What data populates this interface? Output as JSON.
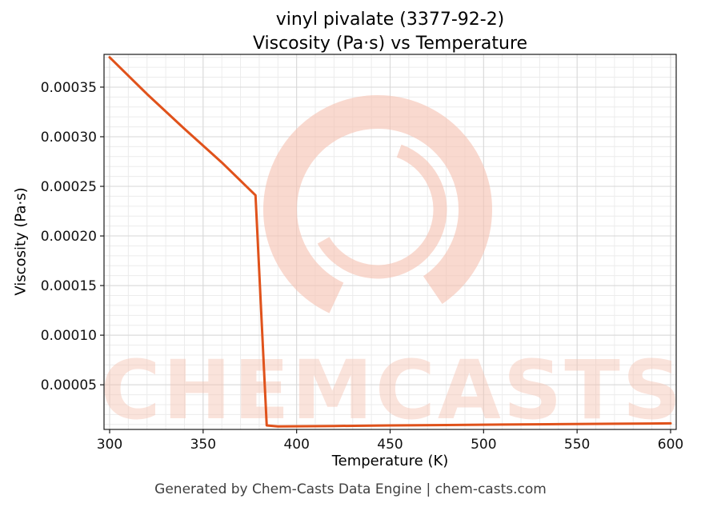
{
  "chart_data": {
    "type": "line",
    "title": "vinyl pivalate (3377-92-2)",
    "subtitle": "Viscosity (Pa·s) vs Temperature",
    "xlabel": "Temperature (K)",
    "ylabel": "Viscosity (Pa·s)",
    "xlim": [
      297,
      603
    ],
    "ylim": [
      5e-06,
      0.000383
    ],
    "x_ticks": [
      300,
      350,
      400,
      450,
      500,
      550,
      600
    ],
    "x_tick_labels": [
      "300",
      "350",
      "400",
      "450",
      "500",
      "550",
      "600"
    ],
    "y_ticks": [
      5e-05,
      0.0001,
      0.00015,
      0.0002,
      0.00025,
      0.0003,
      0.00035
    ],
    "y_tick_labels": [
      "0.00005",
      "0.00010",
      "0.00015",
      "0.00020",
      "0.00025",
      "0.00030",
      "0.00035"
    ],
    "x_minor_step": 10,
    "y_minor_step": 1e-05,
    "grid": true,
    "legend": "none",
    "series": [
      {
        "name": "viscosity",
        "color": "#e0521b",
        "x": [
          300,
          320,
          340,
          360,
          378,
          384,
          390,
          420,
          450,
          480,
          510,
          540,
          570,
          600
        ],
        "y": [
          0.00038,
          0.000343,
          0.000308,
          0.000274,
          0.000241,
          9e-06,
          8e-06,
          8.5e-06,
          9e-06,
          9.4e-06,
          9.9e-06,
          1.03e-05,
          1.07e-05,
          1.11e-05
        ]
      }
    ],
    "watermark": {
      "text": "CHEMCASTS",
      "color": "#f5c2b2"
    }
  },
  "footer": {
    "text": "Generated by Chem-Casts Data Engine | chem-casts.com"
  }
}
